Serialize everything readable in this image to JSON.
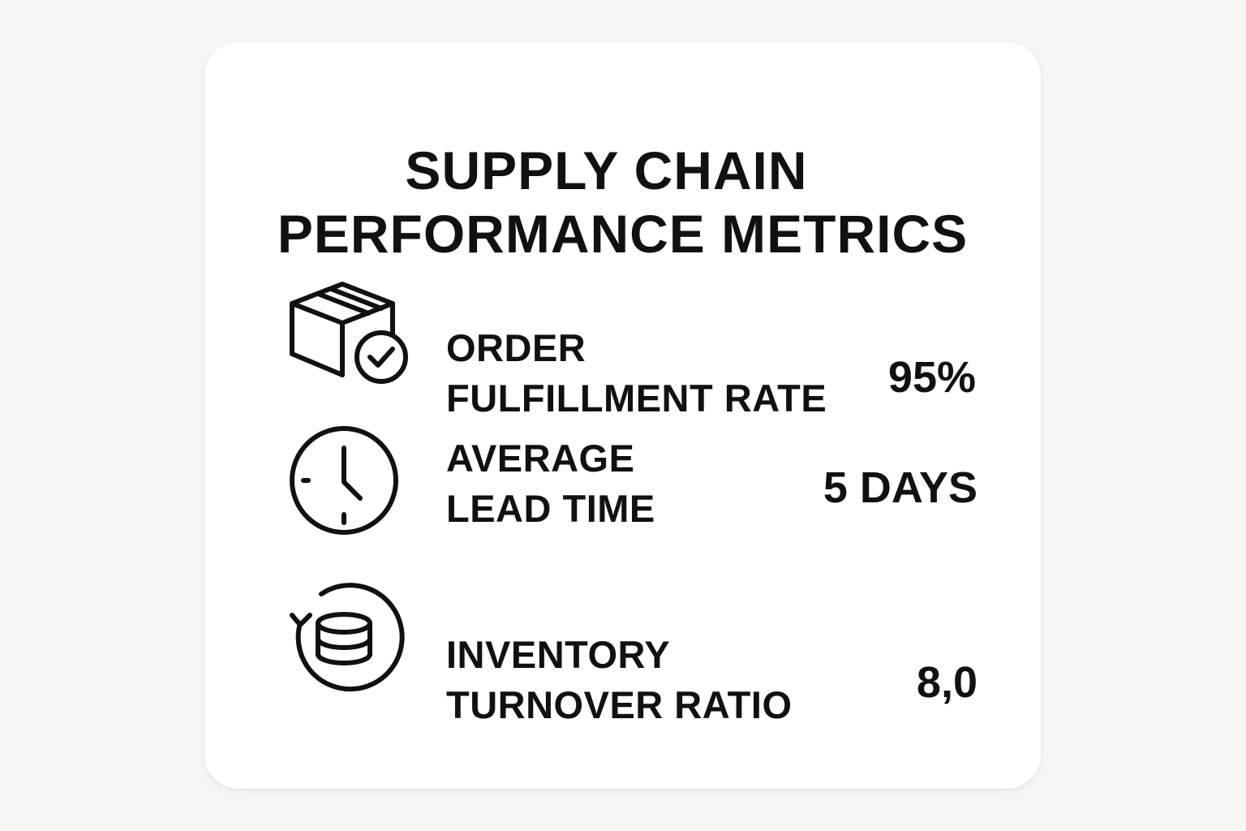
{
  "card": {
    "title_line1": "SUPPLY CHAIN",
    "title_line2": "PERFORMANCE METRICS"
  },
  "metrics": [
    {
      "icon": "box-check-icon",
      "label_line1": "ORDER",
      "label_line2": "FULFILLMENT RATE",
      "value": "95%"
    },
    {
      "icon": "clock-icon",
      "label_line1": "AVERAGE",
      "label_line2": "LEAD TIME",
      "value": "5 DAYS"
    },
    {
      "icon": "inventory-cycle-icon",
      "label_line1": "INVENTORY",
      "label_line2": "TURNOVER RATIO",
      "value": "8,0"
    }
  ],
  "colors": {
    "background": "#f7f7f5",
    "card": "#ffffff",
    "text": "#111111"
  }
}
